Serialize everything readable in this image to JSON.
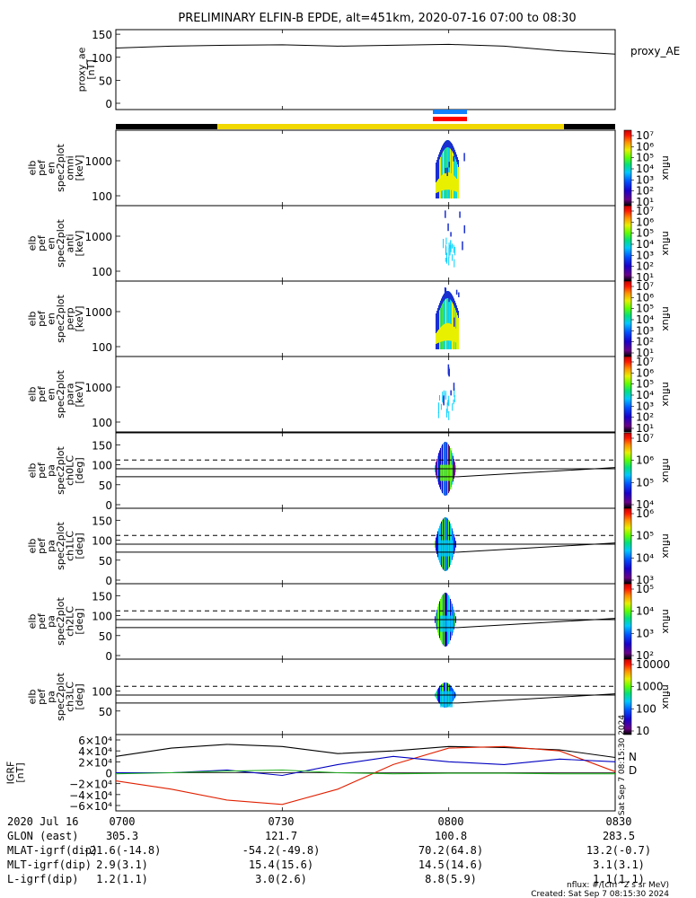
{
  "title": "PRELIMINARY ELFIN-B EPDE, alt=451km, 2020-07-16 07:00 to 08:30",
  "colors": {
    "colorbar": [
      "#000000",
      "#6a0088",
      "#1a00cc",
      "#0050ff",
      "#00c8ff",
      "#00e080",
      "#60ff00",
      "#e8f000",
      "#ff9000",
      "#ff1800",
      "#c80000"
    ],
    "spectro_blue": "#1a2fd0",
    "spectro_cyan": "#00d0ff",
    "spectro_green": "#40e060",
    "spectro_yellow": "#e8f000",
    "status_black": "#000000",
    "status_yellow": "#f0d800",
    "sc_blue": "#1080ff",
    "sc_red": "#ff0000",
    "grf_N": "#0000c0",
    "grf_D": "#e02000",
    "grf_black": "#000000",
    "grf_green": "#20b020"
  },
  "chart_data": [
    {
      "type": "line",
      "name": "proxy_AE",
      "ylabel": "proxy_ae\n[nT]",
      "legend": "proxy_AE",
      "ylim": [
        0,
        160
      ],
      "yticks": [
        "0",
        "50",
        "100",
        "150"
      ],
      "x": [
        "07:00",
        "07:10",
        "07:20",
        "07:30",
        "07:40",
        "07:50",
        "08:00",
        "08:10",
        "08:20",
        "08:30"
      ],
      "values": [
        120,
        124,
        126,
        127,
        124,
        126,
        128,
        124,
        114,
        107
      ]
    },
    {
      "type": "heatmap",
      "name": "omni",
      "ylabel": "elb\npef\nen\nspec2plot\nomni\n[keV]",
      "yticks": [
        "100",
        "1000"
      ],
      "cbar_ticks": [
        "10⁷",
        "10⁶",
        "10⁵",
        "10⁴",
        "10³",
        "10²",
        "10¹"
      ],
      "cbar_label": "nflux",
      "burst": true
    },
    {
      "type": "heatmap",
      "name": "anti",
      "ylabel": "elb\npef\nen\nspec2plot\nanti\n[keV]",
      "yticks": [
        "100",
        "1000"
      ],
      "cbar_ticks": [
        "10⁷",
        "10⁶",
        "10⁵",
        "10⁴",
        "10³",
        "10²",
        "10¹"
      ],
      "cbar_label": "nflux",
      "burst": false
    },
    {
      "type": "heatmap",
      "name": "perp",
      "ylabel": "elb\npef\nen\nspec2plot\nperp\n[keV]",
      "yticks": [
        "100",
        "1000"
      ],
      "cbar_ticks": [
        "10⁷",
        "10⁶",
        "10⁵",
        "10⁴",
        "10³",
        "10²",
        "10¹"
      ],
      "cbar_label": "nflux",
      "burst": true
    },
    {
      "type": "heatmap",
      "name": "para",
      "ylabel": "elb\npef\nen\nspec2plot\npara\n[keV]",
      "yticks": [
        "100",
        "1000"
      ],
      "cbar_ticks": [
        "10⁷",
        "10⁶",
        "10⁵",
        "10⁴",
        "10³",
        "10²",
        "10¹"
      ],
      "cbar_label": "nflux",
      "burst": false
    },
    {
      "type": "heatmap",
      "name": "ch0LC",
      "ylabel": "elb\npef\npa\nspec2plot\nch0LC\n[deg]",
      "yticks": [
        "0",
        "50",
        "100",
        "150"
      ],
      "cbar_ticks": [
        "10⁷",
        "10⁶",
        "10⁵",
        "10⁴"
      ],
      "cbar_label": "nflux"
    },
    {
      "type": "heatmap",
      "name": "ch1LC",
      "ylabel": "elb\npef\npa\nspec2plot\nch1LC\n[deg]",
      "yticks": [
        "0",
        "50",
        "100",
        "150"
      ],
      "cbar_ticks": [
        "10⁶",
        "10⁵",
        "10⁴",
        "10³"
      ],
      "cbar_label": "nflux"
    },
    {
      "type": "heatmap",
      "name": "ch2LC",
      "ylabel": "elb\npef\npa\nspec2plot\nch2LC\n[deg]",
      "yticks": [
        "0",
        "50",
        "100",
        "150"
      ],
      "cbar_ticks": [
        "10⁵",
        "10⁴",
        "10³",
        "10²"
      ],
      "cbar_label": "nflux"
    },
    {
      "type": "heatmap",
      "name": "ch3LC",
      "ylabel": "elb\npef\npa\nspec2plot\nch3LC\n[deg]",
      "yticks": [
        "50",
        "100"
      ],
      "cbar_ticks": [
        "10000",
        "1000",
        "100",
        "10"
      ],
      "cbar_label": "nflux"
    },
    {
      "type": "line",
      "name": "IGRF",
      "ylabel": "IGRF\n[nT]",
      "ylim": [
        -60000,
        60000
      ],
      "yticks": [
        "6×10⁴",
        "4×10⁴",
        "2×10⁴",
        "0",
        "−2×10⁴",
        "−4×10⁴",
        "−6×10⁴"
      ],
      "legend": [
        "N",
        "D"
      ],
      "side_text": "Sat Sep  7 08:15:30 2024",
      "x": [
        "07:00",
        "07:10",
        "07:20",
        "07:30",
        "07:40",
        "07:50",
        "08:00",
        "08:10",
        "08:20",
        "08:30"
      ],
      "series": [
        {
          "values": [
            30000,
            45000,
            52000,
            48000,
            35000,
            40000,
            48000,
            46000,
            42000,
            28000
          ]
        },
        {
          "values": [
            -15000,
            -30000,
            -50000,
            -58000,
            -30000,
            15000,
            45000,
            48000,
            40000,
            2000
          ]
        },
        {
          "values": [
            0,
            0,
            5000,
            -5000,
            15000,
            30000,
            20000,
            15000,
            25000,
            20000
          ]
        },
        {
          "values": [
            -2000,
            0,
            3000,
            5000,
            0,
            -2000,
            -1000,
            -1000,
            -2000,
            -2000
          ]
        }
      ]
    }
  ],
  "footer": {
    "rows": [
      [
        "2020 Jul 16",
        "0700",
        "0730",
        "0800",
        "0830"
      ],
      [
        "GLON (east)",
        "305.3",
        "121.7",
        "100.8",
        "283.5"
      ],
      [
        "MLAT-igrf(dip)",
        "-21.6(-14.8)",
        "-54.2(-49.8)",
        "70.2(64.8)",
        "13.2(-0.7)"
      ],
      [
        "MLT-igrf(dip)",
        "2.9(3.1)",
        "15.4(15.6)",
        "14.5(14.6)",
        "3.1(3.1)"
      ],
      [
        "L-igrf(dip)",
        "1.2(1.1)",
        "3.0(2.6)",
        "8.8(5.9)",
        "1.1(1.1)"
      ]
    ],
    "units": "nflux: #/(cm^2 s sr MeV)",
    "created": "Created: Sat Sep  7 08:15:30 2024"
  }
}
